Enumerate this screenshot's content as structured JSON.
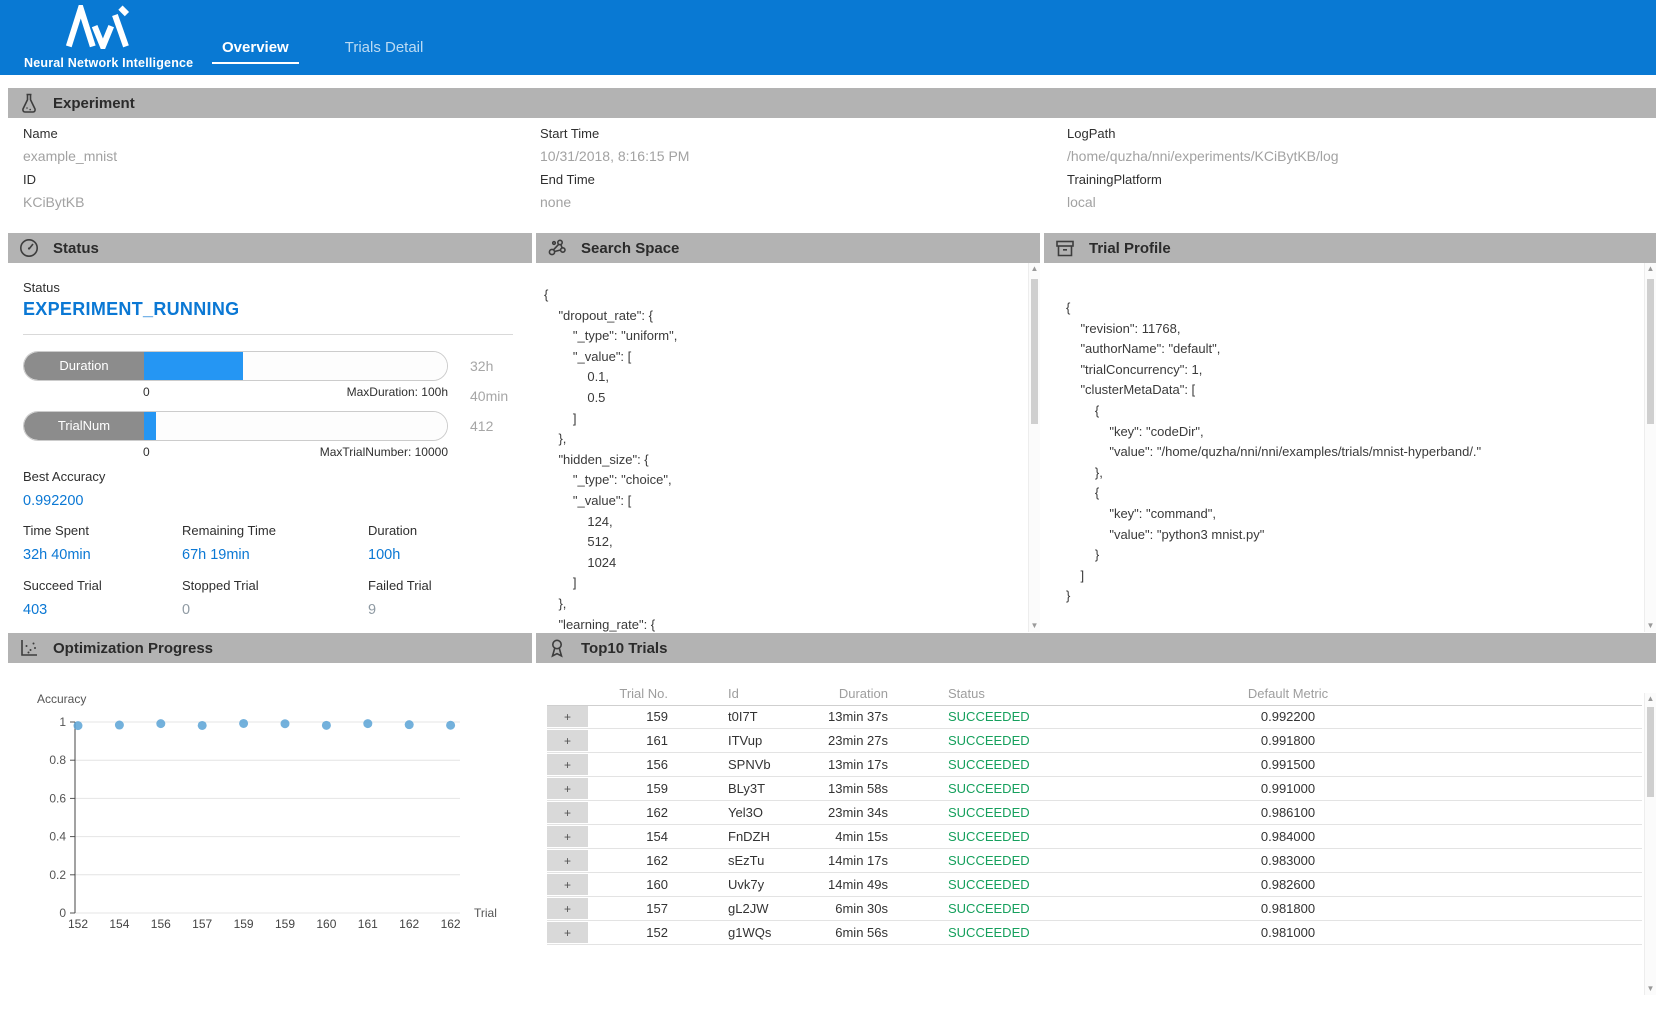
{
  "header": {
    "brand": "Neural Network Intelligence",
    "tabs": [
      {
        "label": "Overview",
        "active": true
      },
      {
        "label": "Trials Detail",
        "active": false
      }
    ]
  },
  "experiment": {
    "title": "Experiment",
    "columns": [
      [
        {
          "label": "Name",
          "value": "example_mnist"
        },
        {
          "label": "ID",
          "value": "KCiBytKB"
        }
      ],
      [
        {
          "label": "Start Time",
          "value": "10/31/2018, 8:16:15 PM"
        },
        {
          "label": "End Time",
          "value": "none"
        }
      ],
      [
        {
          "label": "LogPath",
          "value": "/home/quzha/nni/experiments/KCiBytKB/log"
        },
        {
          "label": "TrainingPlatform",
          "value": "local"
        }
      ]
    ]
  },
  "status": {
    "title": "Status",
    "status_label": "Status",
    "status_value": "EXPERIMENT_RUNNING",
    "bars": [
      {
        "label": "Duration",
        "value_text": "32h 40min",
        "percent": 32.7,
        "min": "0",
        "max_label": "MaxDuration: 100h"
      },
      {
        "label": "TrialNum",
        "value_text": "412",
        "percent": 4.12,
        "min": "0",
        "max_label": "MaxTrialNumber: 10000"
      }
    ],
    "best_accuracy": {
      "label": "Best Accuracy",
      "value": "0.992200"
    },
    "stats": [
      {
        "label": "Time Spent",
        "value": "32h 40min",
        "highlight": true
      },
      {
        "label": "Remaining Time",
        "value": "67h 19min",
        "highlight": true
      },
      {
        "label": "Duration",
        "value": "100h",
        "highlight": true
      },
      {
        "label": "Succeed Trial",
        "value": "403",
        "highlight": true
      },
      {
        "label": "Stopped Trial",
        "value": "0",
        "highlight": false
      },
      {
        "label": "Failed Trial",
        "value": "9",
        "highlight": false
      }
    ]
  },
  "search_space": {
    "title": "Search Space",
    "lines": [
      "{",
      "    \"dropout_rate\": {",
      "        \"_type\": \"uniform\",",
      "        \"_value\": [",
      "            0.1,",
      "            0.5",
      "        ]",
      "    },",
      "    \"hidden_size\": {",
      "        \"_type\": \"choice\",",
      "        \"_value\": [",
      "            124,",
      "            512,",
      "            1024",
      "        ]",
      "    },",
      "    \"learning_rate\": {"
    ]
  },
  "trial_profile": {
    "title": "Trial Profile",
    "lines": [
      "{",
      "    \"revision\": 11768,",
      "    \"authorName\": \"default\",",
      "    \"trialConcurrency\": 1,",
      "    \"clusterMetaData\": [",
      "        {",
      "            \"key\": \"codeDir\",",
      "            \"value\": \"/home/quzha/nni/nni/examples/trials/mnist-hyperband/.\"",
      "        },",
      "        {",
      "            \"key\": \"command\",",
      "            \"value\": \"python3 mnist.py\"",
      "        }",
      "    ]",
      "}"
    ]
  },
  "optimization": {
    "title": "Optimization Progress"
  },
  "chart_data": {
    "type": "scatter",
    "title": "Optimization Progress",
    "ylabel": "Accuracy",
    "xlabel": "Trial",
    "x_tick_labels": [
      "152",
      "154",
      "156",
      "157",
      "159",
      "159",
      "160",
      "161",
      "162",
      "162"
    ],
    "values": [
      0.981,
      0.984,
      0.9915,
      0.9818,
      0.9922,
      0.991,
      0.9826,
      0.9918,
      0.9861,
      0.983
    ],
    "y_ticks": [
      1,
      0.8,
      0.6,
      0.4,
      0.2,
      0
    ],
    "ylim": [
      0,
      1
    ],
    "grid": true,
    "legend": "none",
    "point_color": "#5ba3d6"
  },
  "top10": {
    "title": "Top10 Trials",
    "expander": "+",
    "columns": [
      "Trial No.",
      "Id",
      "Duration",
      "Status",
      "Default Metric"
    ],
    "rows": [
      {
        "no": "159",
        "id": "t0I7T",
        "duration": "13min 37s",
        "status": "SUCCEEDED",
        "metric": "0.992200"
      },
      {
        "no": "161",
        "id": "ITVup",
        "duration": "23min 27s",
        "status": "SUCCEEDED",
        "metric": "0.991800"
      },
      {
        "no": "156",
        "id": "SPNVb",
        "duration": "13min 17s",
        "status": "SUCCEEDED",
        "metric": "0.991500"
      },
      {
        "no": "159",
        "id": "BLy3T",
        "duration": "13min 58s",
        "status": "SUCCEEDED",
        "metric": "0.991000"
      },
      {
        "no": "162",
        "id": "Yel3O",
        "duration": "23min 34s",
        "status": "SUCCEEDED",
        "metric": "0.986100"
      },
      {
        "no": "154",
        "id": "FnDZH",
        "duration": "4min 15s",
        "status": "SUCCEEDED",
        "metric": "0.984000"
      },
      {
        "no": "162",
        "id": "sEzTu",
        "duration": "14min 17s",
        "status": "SUCCEEDED",
        "metric": "0.983000"
      },
      {
        "no": "160",
        "id": "Uvk7y",
        "duration": "14min 49s",
        "status": "SUCCEEDED",
        "metric": "0.982600"
      },
      {
        "no": "157",
        "id": "gL2JW",
        "duration": "6min 30s",
        "status": "SUCCEEDED",
        "metric": "0.981800"
      },
      {
        "no": "152",
        "id": "g1WQs",
        "duration": "6min 56s",
        "status": "SUCCEEDED",
        "metric": "0.981000"
      }
    ]
  },
  "theme": {
    "header_blue": "#0979d3",
    "accent_blue": "#0b78d4",
    "progress_blue": "#2596f3",
    "section_gray": "#b3b3b3",
    "success_green": "#16a05d",
    "point_blue": "#5ba3d6"
  }
}
